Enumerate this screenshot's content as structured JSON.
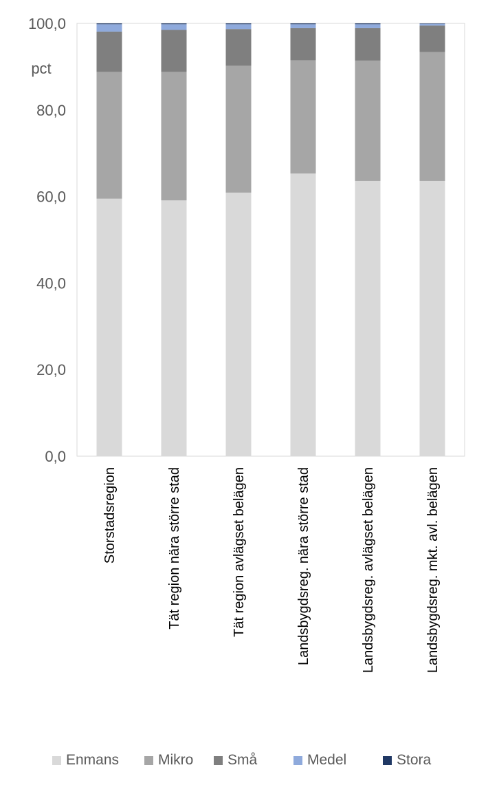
{
  "chart_data": {
    "type": "bar",
    "stacked": true,
    "title": "",
    "xlabel": "",
    "ylabel": "",
    "unit_label": "pct",
    "ylim": [
      0,
      100
    ],
    "yticks": [
      "0,0",
      "20,0",
      "40,0",
      "60,0",
      "80,0",
      "100,0"
    ],
    "ytick_values": [
      0,
      20,
      40,
      60,
      80,
      100
    ],
    "grid": false,
    "legend_position": "bottom",
    "categories": [
      "Storstadsregion",
      "Tät region nära större stad",
      "Tät region avlägset belägen",
      "Landsbygdsreg. nära större stad",
      "Landsbygdsreg. avlägset belägen",
      "Landsbygdsreg. mkt. avl. belägen"
    ],
    "series": [
      {
        "name": "Enmans",
        "color": "#d9d9d9",
        "values": [
          59.5,
          59.1,
          60.9,
          65.3,
          63.6,
          63.6
        ]
      },
      {
        "name": "Mikro",
        "color": "#a6a6a6",
        "values": [
          29.3,
          29.7,
          29.3,
          26.2,
          27.8,
          29.8
        ]
      },
      {
        "name": "Små",
        "color": "#7f7f7f",
        "values": [
          9.3,
          9.7,
          8.5,
          7.4,
          7.5,
          6.1
        ]
      },
      {
        "name": "Medel",
        "color": "#8faadc",
        "values": [
          1.7,
          1.3,
          1.1,
          0.9,
          0.9,
          0.4
        ]
      },
      {
        "name": "Stora",
        "color": "#203864",
        "values": [
          0.2,
          0.2,
          0.2,
          0.2,
          0.2,
          0.1
        ]
      }
    ]
  }
}
